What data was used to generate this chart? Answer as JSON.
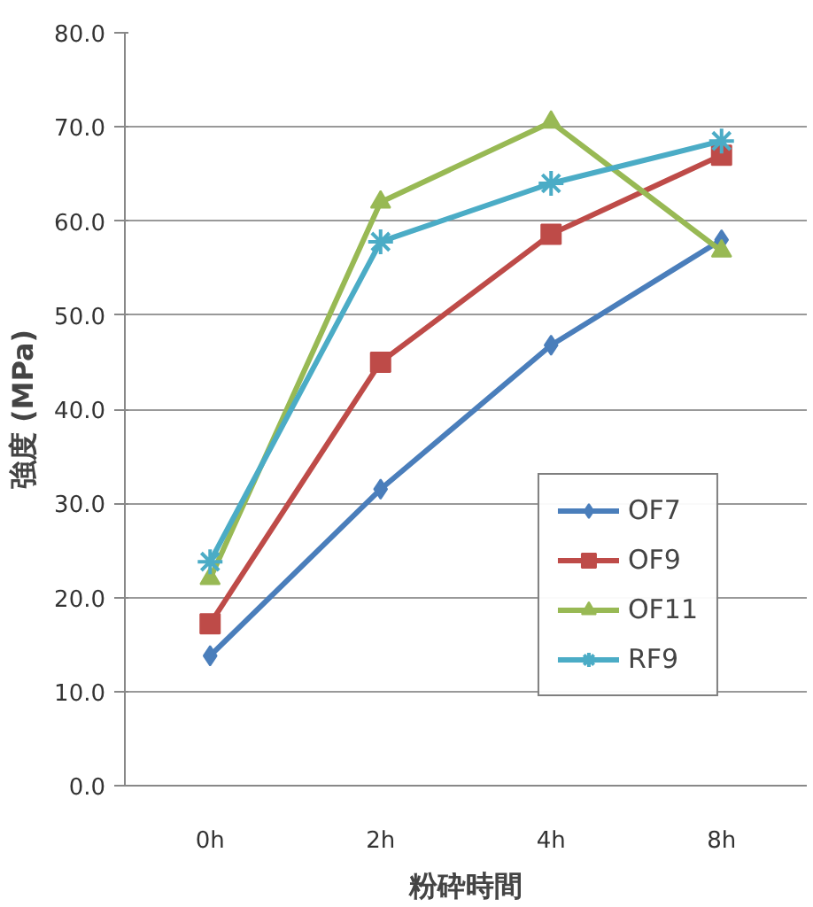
{
  "chart_data": {
    "type": "line",
    "xlabel": "粉砕時間",
    "ylabel": "強度 (MPa)",
    "categories": [
      "0h",
      "2h",
      "4h",
      "8h"
    ],
    "ylim": [
      0,
      80
    ],
    "yticks": [
      {
        "value": 0,
        "label": "0.0"
      },
      {
        "value": 10,
        "label": "10.0"
      },
      {
        "value": 20,
        "label": "20.0"
      },
      {
        "value": 30,
        "label": "30.0"
      },
      {
        "value": 40,
        "label": "40.0"
      },
      {
        "value": 50,
        "label": "50.0"
      },
      {
        "value": 60,
        "label": "60.0"
      },
      {
        "value": 70,
        "label": "70.0"
      },
      {
        "value": 80,
        "label": "80.0"
      }
    ],
    "grid": "y",
    "legend": "bottom right",
    "line_style": "solid",
    "series": [
      {
        "name": "OF7",
        "color": "#4a7ebb",
        "marker": "diamond",
        "values": [
          13.8,
          31.5,
          46.8,
          58.0
        ]
      },
      {
        "name": "OF9",
        "color": "#be4b48",
        "marker": "square",
        "values": [
          17.2,
          45.0,
          58.6,
          67.0
        ]
      },
      {
        "name": "OF11",
        "color": "#98b954",
        "marker": "triangle",
        "values": [
          22.0,
          62.0,
          70.5,
          56.8
        ]
      },
      {
        "name": "RF9",
        "color": "#4bacc6",
        "marker": "cross",
        "values": [
          23.8,
          57.8,
          64.0,
          68.5
        ]
      }
    ]
  }
}
